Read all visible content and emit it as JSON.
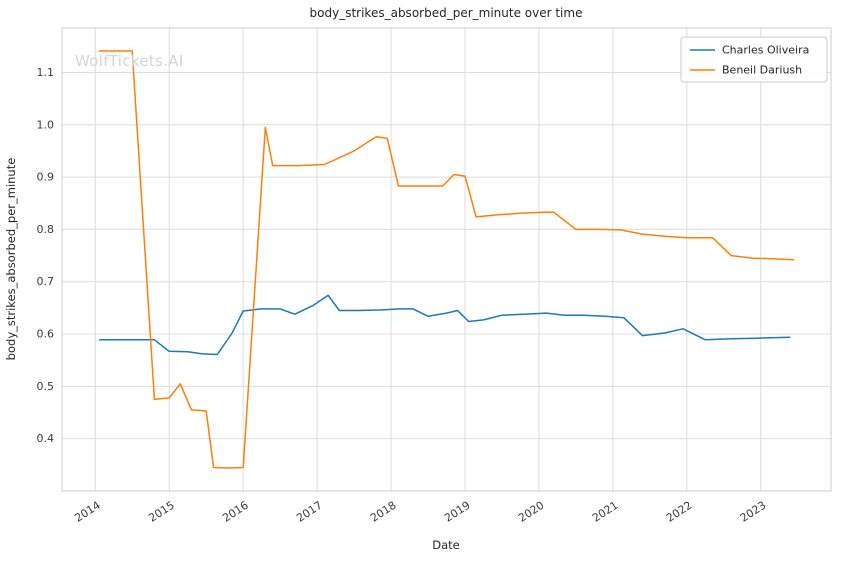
{
  "watermark": {
    "text": "WolfTickets.AI",
    "color": "#d3d3d3"
  },
  "colors": {
    "grid": "#dcdcdc",
    "spine": "#cccccc",
    "background": "#ffffff",
    "legend_border": "#cccccc"
  },
  "chart_data": {
    "type": "line",
    "title": "body_strikes_absorbed_per_minute over time",
    "xlabel": "Date",
    "ylabel": "body_strikes_absorbed_per_minute",
    "grid": true,
    "legend_position": "upper right",
    "x_ticks": [
      2014,
      2015,
      2016,
      2017,
      2018,
      2019,
      2020,
      2021,
      2022,
      2023
    ],
    "y_ticks": [
      0.4,
      0.5,
      0.6,
      0.7,
      0.8,
      0.9,
      1.0,
      1.1
    ],
    "xlim": [
      2013.55,
      2023.95
    ],
    "ylim": [
      0.3,
      1.185
    ],
    "series": [
      {
        "name": "Charles Oliveira",
        "color": "#1f77b4",
        "x": [
          2014.05,
          2014.45,
          2014.8,
          2015.0,
          2015.25,
          2015.45,
          2015.65,
          2015.85,
          2016.0,
          2016.25,
          2016.5,
          2016.7,
          2016.95,
          2017.15,
          2017.3,
          2017.55,
          2017.85,
          2018.1,
          2018.3,
          2018.5,
          2018.75,
          2018.9,
          2019.05,
          2019.25,
          2019.5,
          2019.8,
          2020.1,
          2020.35,
          2020.6,
          2020.9,
          2021.15,
          2021.4,
          2021.7,
          2021.95,
          2022.25,
          2022.6,
          2022.95,
          2023.4
        ],
        "y": [
          0.589,
          0.589,
          0.589,
          0.567,
          0.566,
          0.562,
          0.561,
          0.602,
          0.644,
          0.648,
          0.648,
          0.638,
          0.655,
          0.674,
          0.645,
          0.645,
          0.646,
          0.648,
          0.648,
          0.634,
          0.64,
          0.645,
          0.624,
          0.627,
          0.636,
          0.638,
          0.64,
          0.636,
          0.636,
          0.634,
          0.631,
          0.597,
          0.602,
          0.61,
          0.589,
          0.591,
          0.592,
          0.594
        ]
      },
      {
        "name": "Beneil Dariush",
        "color": "#ff7f0e",
        "x": [
          2014.05,
          2014.5,
          2014.8,
          2015.0,
          2015.15,
          2015.3,
          2015.5,
          2015.6,
          2015.8,
          2016.0,
          2016.3,
          2016.4,
          2016.75,
          2017.1,
          2017.5,
          2017.8,
          2017.95,
          2018.1,
          2018.4,
          2018.7,
          2018.85,
          2019.0,
          2019.15,
          2019.45,
          2019.75,
          2020.05,
          2020.2,
          2020.5,
          2020.8,
          2021.1,
          2021.4,
          2021.7,
          2022.0,
          2022.35,
          2022.6,
          2022.9,
          2023.15,
          2023.45
        ],
        "y": [
          1.141,
          1.141,
          0.475,
          0.478,
          0.505,
          0.455,
          0.453,
          0.345,
          0.344,
          0.345,
          0.995,
          0.922,
          0.922,
          0.924,
          0.95,
          0.977,
          0.974,
          0.883,
          0.883,
          0.883,
          0.905,
          0.902,
          0.824,
          0.828,
          0.831,
          0.833,
          0.833,
          0.8,
          0.8,
          0.799,
          0.791,
          0.787,
          0.784,
          0.784,
          0.75,
          0.745,
          0.744,
          0.742
        ]
      }
    ]
  }
}
